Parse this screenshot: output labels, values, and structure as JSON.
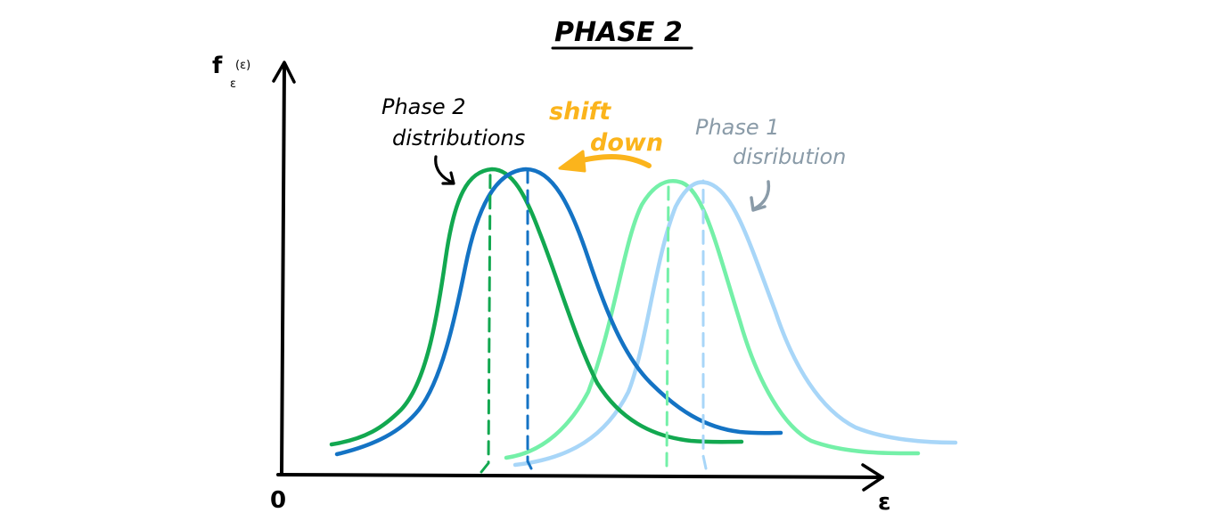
{
  "title": "PHASE 2",
  "axes": {
    "y_label_main": "f",
    "y_label_sub": "ε",
    "y_label_arg": "(ε)",
    "x_label": "ε",
    "origin_label": "0"
  },
  "annotations": {
    "phase2_line1": "Phase 2",
    "phase2_line2": "distributions",
    "shift_line1": "shift",
    "shift_line2": "down",
    "phase1_line1": "Phase 1",
    "phase1_line2": "disribution"
  },
  "colors": {
    "phase2_green": "#12a850",
    "phase2_blue": "#1473c4",
    "phase1_green": "#74f0a8",
    "phase1_blue": "#a8d6f8",
    "shift_arrow": "#fbb41c",
    "phase1_label": "#8a9ba8",
    "axis": "#000000"
  },
  "icons": [
    "curved-arrow-icon",
    "shift-arrow-icon",
    "curved-arrow-icon"
  ]
}
